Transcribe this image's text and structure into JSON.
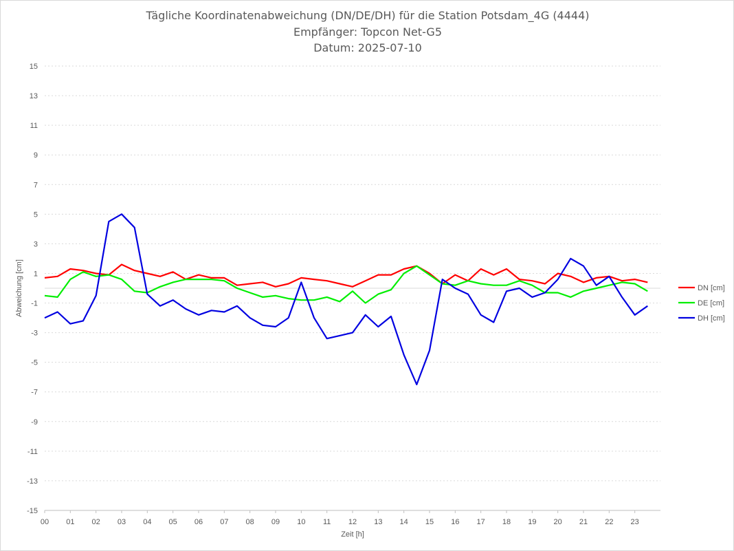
{
  "chart_data": {
    "type": "line",
    "title": "Tägliche Koordinatenabweichung (DN/DE/DH) für die Station Potsdam_4G (4444)",
    "subtitle_receiver": "Empfänger: Topcon Net-G5",
    "subtitle_date": "Datum: 2025-07-10",
    "xlabel": "Zeit [h]",
    "ylabel": "Abweichung [cm]",
    "ylim": [
      -15,
      15
    ],
    "yticks": [
      15,
      13,
      11,
      9,
      7,
      5,
      3,
      1,
      -1,
      -3,
      -5,
      -7,
      -9,
      -11,
      -13,
      -15
    ],
    "xlim": [
      0,
      24
    ],
    "xticks": [
      "00",
      "01",
      "02",
      "03",
      "04",
      "05",
      "06",
      "07",
      "08",
      "09",
      "10",
      "11",
      "12",
      "13",
      "14",
      "15",
      "16",
      "17",
      "18",
      "19",
      "20",
      "21",
      "22",
      "23"
    ],
    "grid": true,
    "legend_position": "right",
    "x": [
      0,
      0.5,
      1,
      1.5,
      2,
      2.5,
      3,
      3.5,
      4,
      4.5,
      5,
      5.5,
      6,
      6.5,
      7,
      7.5,
      8,
      8.5,
      9,
      9.5,
      10,
      10.5,
      11,
      11.5,
      12,
      12.5,
      13,
      13.5,
      14,
      14.5,
      15,
      15.5,
      16,
      16.5,
      17,
      17.5,
      18,
      18.5,
      19,
      19.5,
      20,
      20.5,
      21,
      21.5,
      22,
      22.5,
      23,
      23.5
    ],
    "series": [
      {
        "name": "DN [cm]",
        "color": "#ff0000",
        "values": [
          0.7,
          0.8,
          1.3,
          1.2,
          1.0,
          0.9,
          1.6,
          1.2,
          1.0,
          0.8,
          1.1,
          0.6,
          0.9,
          0.7,
          0.7,
          0.2,
          0.3,
          0.4,
          0.1,
          0.3,
          0.7,
          0.6,
          0.5,
          0.3,
          0.1,
          0.5,
          0.9,
          0.9,
          1.3,
          1.5,
          1.0,
          0.3,
          0.9,
          0.5,
          1.3,
          0.9,
          1.3,
          0.6,
          0.5,
          0.3,
          1.0,
          0.8,
          0.4,
          0.7,
          0.8,
          0.5,
          0.6,
          0.4
        ]
      },
      {
        "name": "DE [cm]",
        "color": "#00ee00",
        "values": [
          -0.5,
          -0.6,
          0.6,
          1.1,
          0.8,
          0.9,
          0.6,
          -0.2,
          -0.3,
          0.1,
          0.4,
          0.6,
          0.6,
          0.6,
          0.5,
          0.0,
          -0.3,
          -0.6,
          -0.5,
          -0.7,
          -0.8,
          -0.8,
          -0.6,
          -0.9,
          -0.2,
          -1.0,
          -0.4,
          -0.1,
          1.0,
          1.5,
          0.9,
          0.3,
          0.2,
          0.5,
          0.3,
          0.2,
          0.2,
          0.5,
          0.2,
          -0.3,
          -0.3,
          -0.6,
          -0.2,
          0.0,
          0.2,
          0.4,
          0.3,
          -0.2
        ]
      },
      {
        "name": "DH [cm]",
        "color": "#0000e0",
        "values": [
          -2.0,
          -1.6,
          -2.4,
          -2.2,
          -0.5,
          4.5,
          5.0,
          4.1,
          -0.4,
          -1.2,
          -0.8,
          -1.4,
          -1.8,
          -1.5,
          -1.6,
          -1.2,
          -2.0,
          -2.5,
          -2.6,
          -2.0,
          0.4,
          -2.0,
          -3.4,
          -3.2,
          -3.0,
          -1.8,
          -2.6,
          -1.9,
          -4.5,
          -6.5,
          -4.2,
          0.6,
          0.0,
          -0.4,
          -1.8,
          -2.3,
          -0.2,
          0.0,
          -0.6,
          -0.3,
          0.6,
          2.0,
          1.5,
          0.2,
          0.8,
          -0.6,
          -1.8,
          -1.2
        ]
      }
    ]
  }
}
